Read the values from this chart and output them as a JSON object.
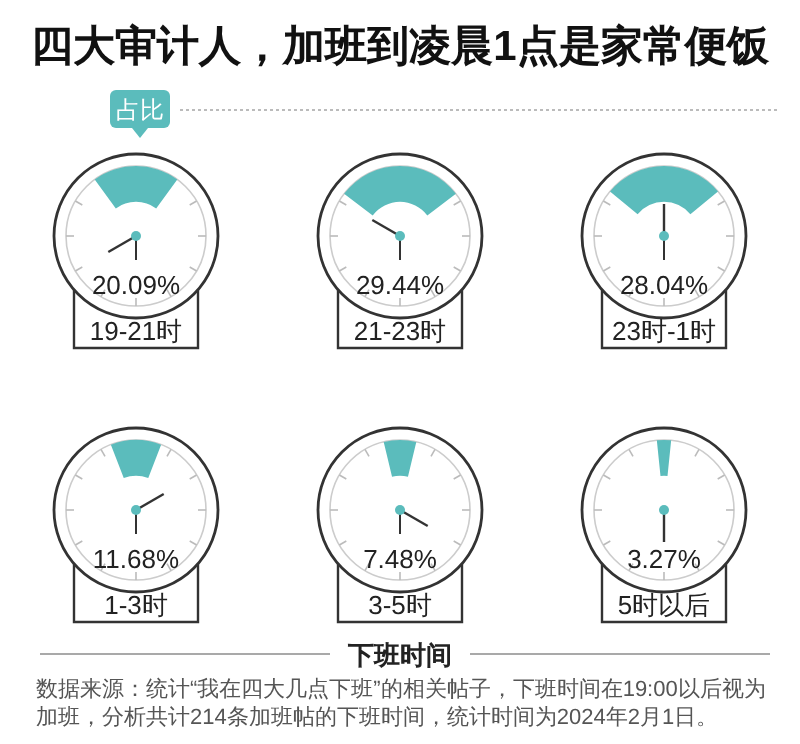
{
  "chart_data": {
    "type": "other",
    "title": "四大审计人，加班到凌晨1点是家常便饭",
    "ylabel": "占比",
    "xlabel": "下班时间",
    "categories": [
      "19-21时",
      "21-23时",
      "23时-1时",
      "1-3时",
      "3-5时",
      "5时以后"
    ],
    "values": [
      20.09,
      29.44,
      28.04,
      11.68,
      7.48,
      3.27
    ],
    "value_labels": [
      "20.09%",
      "29.44%",
      "28.04%",
      "11.68%",
      "7.48%",
      "3.27%"
    ],
    "color": "#5bbcbc",
    "annotations": [
      "数据来源：统计“我在四大几点下班”的相关帖子，下班时间在19:00以后视为加班，分析共计214条加班帖的下班时间，统计时间为2024年2月1日。"
    ]
  }
}
